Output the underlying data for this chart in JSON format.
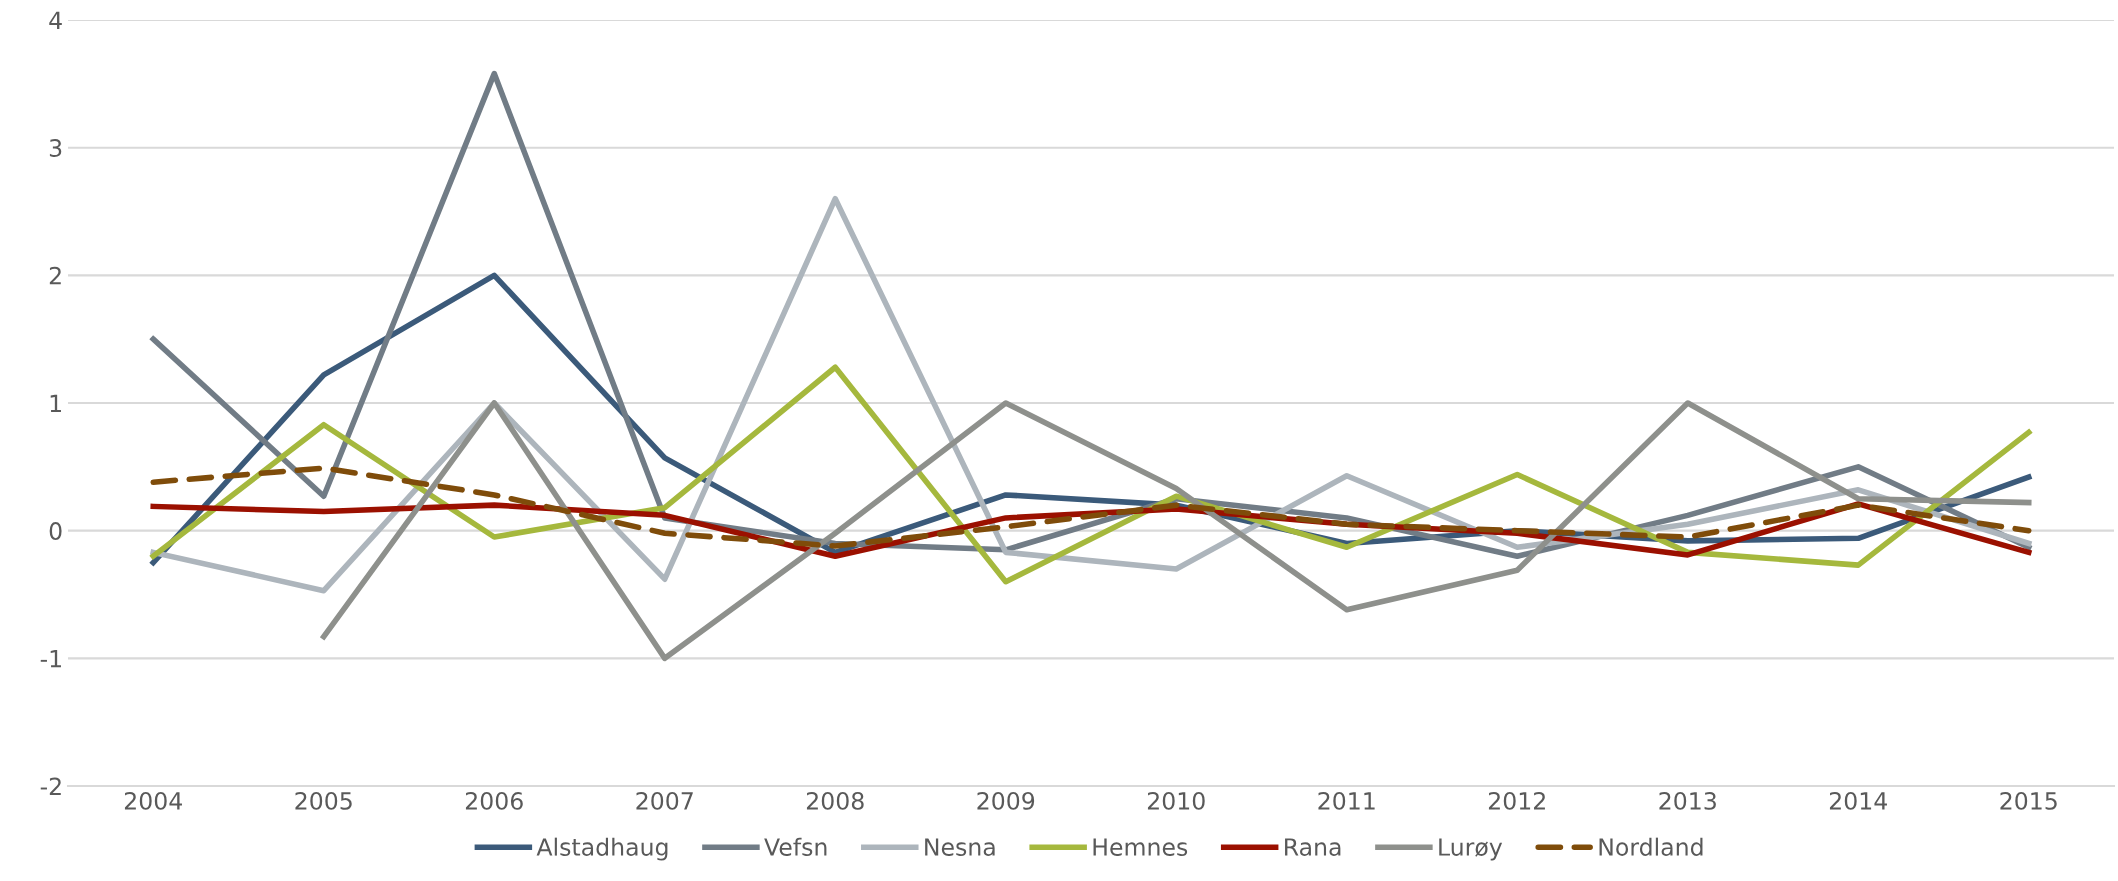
{
  "chart_data": {
    "type": "line",
    "categories": [
      "2004",
      "2005",
      "2006",
      "2007",
      "2008",
      "2009",
      "2010",
      "2011",
      "2012",
      "2013",
      "2014",
      "2015"
    ],
    "series": [
      {
        "name": "Alstadhaug",
        "color": "#3b5a7a",
        "values": [
          -0.25,
          1.22,
          2.0,
          0.57,
          -0.17,
          0.28,
          0.2,
          -0.1,
          0.0,
          -0.08,
          -0.06,
          0.42
        ]
      },
      {
        "name": "Vefsn",
        "color": "#717c86",
        "values": [
          1.5,
          0.27,
          3.58,
          0.1,
          -0.1,
          -0.15,
          0.25,
          0.1,
          -0.2,
          0.12,
          0.5,
          -0.13
        ]
      },
      {
        "name": "Nesna",
        "color": "#adb5bc",
        "values": [
          -0.17,
          -0.47,
          1.0,
          -0.38,
          2.6,
          -0.17,
          -0.3,
          0.43,
          -0.13,
          0.05,
          0.32,
          -0.1
        ]
      },
      {
        "name": "Hemnes",
        "color": "#a5b83d",
        "values": [
          -0.2,
          0.83,
          -0.05,
          0.18,
          1.28,
          -0.4,
          0.27,
          -0.13,
          0.44,
          -0.17,
          -0.27,
          0.77
        ]
      },
      {
        "name": "Rana",
        "color": "#9b1000",
        "values": [
          0.19,
          0.15,
          0.2,
          0.12,
          -0.2,
          0.1,
          0.17,
          0.05,
          -0.02,
          -0.19,
          0.21,
          -0.17
        ]
      },
      {
        "name": "Lurøy",
        "color": "#8e908c",
        "values": [
          null,
          -0.83,
          1.0,
          -1.0,
          -0.02,
          1.0,
          0.33,
          -0.62,
          -0.31,
          1.0,
          0.25,
          0.22
        ]
      },
      {
        "name": "Nordland",
        "color": "#7f4c0a",
        "line_style": "dashed",
        "values": [
          0.38,
          0.49,
          0.28,
          -0.02,
          -0.12,
          0.03,
          0.2,
          0.05,
          0.0,
          -0.05,
          0.2,
          0.0
        ]
      }
    ],
    "ylim": [
      -2,
      4
    ],
    "yticks": [
      -2,
      -1,
      0,
      1,
      2,
      3,
      4
    ],
    "grid": "y",
    "legend": "bottom",
    "marker": "none",
    "line_style": "solid"
  }
}
